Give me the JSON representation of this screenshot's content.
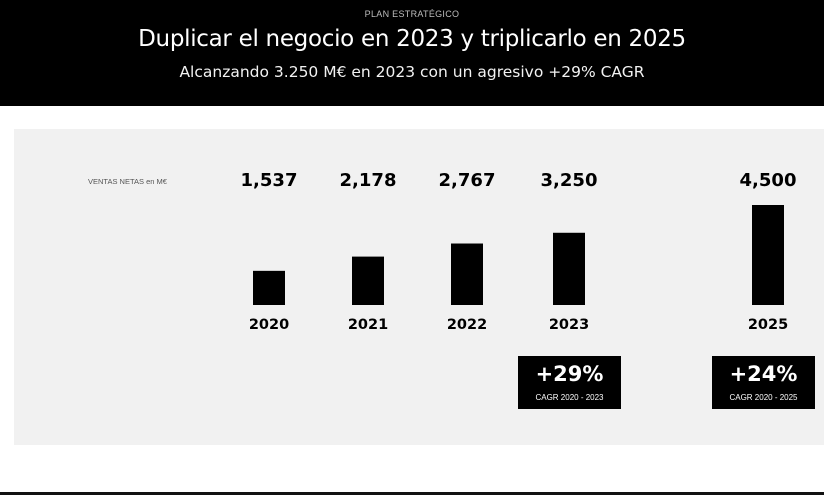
{
  "header": {
    "kicker": "PLAN ESTRATÉGICO",
    "title": "Duplicar el negocio en 2023 y triplicarlo en 2025",
    "subtitle": "Alcanzando 3.250 M€ en 2023 con un agresivo +29% CAGR"
  },
  "chart_data": {
    "type": "bar",
    "metric_label": "VENTAS NETAS en M€",
    "categories": [
      "2020",
      "2021",
      "2022",
      "2023",
      "2025"
    ],
    "values": [
      1537,
      2178,
      2767,
      3250,
      4500
    ],
    "value_labels": [
      "1,537",
      "2,178",
      "2,767",
      "3,250",
      "4,500"
    ],
    "bar_color": "#000000",
    "background": "#f1f1f1",
    "grid": false,
    "legend": "none"
  },
  "cagr": [
    {
      "value": "+29%",
      "label": "CAGR 2020 - 2023"
    },
    {
      "value": "+24%",
      "label": "CAGR 2020 - 2025"
    }
  ]
}
